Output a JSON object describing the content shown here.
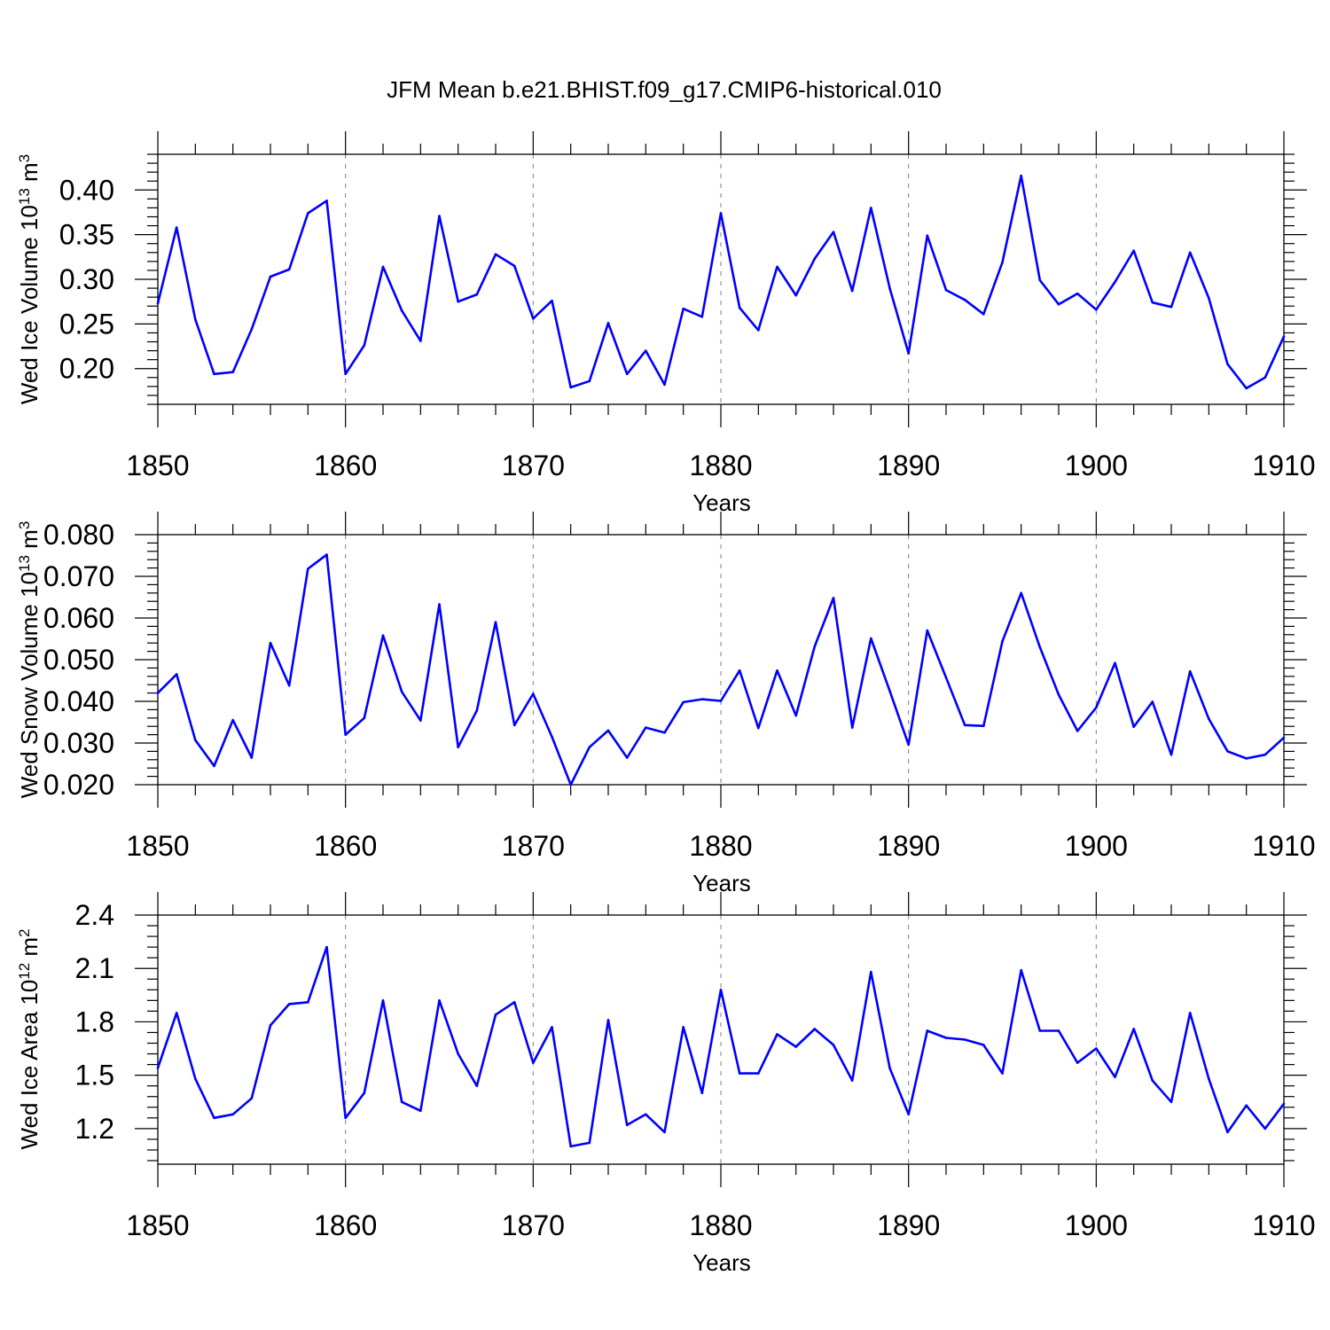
{
  "title": "JFM Mean b.e21.BHIST.f09_g17.CMIP6-historical.010",
  "colors": {
    "line": "#0000ff",
    "grid": "#808080",
    "axis": "#000000"
  },
  "chart_data": [
    {
      "type": "line",
      "title": "JFM Mean b.e21.BHIST.f09_g17.CMIP6-historical.010",
      "xlabel": "Years",
      "ylabel": {
        "main": "Wed Ice Volume 10",
        "sup": "13",
        "unit": " m",
        "unit_sup": "3"
      },
      "xlim": [
        1850,
        1910
      ],
      "ylim": [
        0.16,
        0.44
      ],
      "x_ticks": [
        "1850",
        "1860",
        "1870",
        "1880",
        "1890",
        "1900",
        "1910"
      ],
      "y_ticks": [
        "0.20",
        "0.25",
        "0.30",
        "0.35",
        "0.40"
      ],
      "grid": "dashed vertical at each decade",
      "series": [
        {
          "name": "Wed Ice Volume",
          "x_start": 1850,
          "values": [
            0.273,
            0.358,
            0.255,
            0.194,
            0.196,
            0.244,
            0.303,
            0.311,
            0.374,
            0.388,
            0.194,
            0.226,
            0.314,
            0.265,
            0.231,
            0.371,
            0.275,
            0.283,
            0.328,
            0.315,
            0.256,
            0.276,
            0.179,
            0.186,
            0.251,
            0.194,
            0.22,
            0.182,
            0.267,
            0.258,
            0.374,
            0.268,
            0.243,
            0.314,
            0.282,
            0.323,
            0.353,
            0.287,
            0.38,
            0.29,
            0.217,
            0.349,
            0.288,
            0.277,
            0.261,
            0.319,
            0.416,
            0.299,
            0.272,
            0.284,
            0.266,
            0.297,
            0.332,
            0.274,
            0.269,
            0.33,
            0.279,
            0.205,
            0.178,
            0.19,
            0.236
          ]
        }
      ]
    },
    {
      "type": "line",
      "xlabel": "Years",
      "ylabel": {
        "main": "Wed Snow Volume 10",
        "sup": "13",
        "unit": " m",
        "unit_sup": "3"
      },
      "xlim": [
        1850,
        1910
      ],
      "ylim": [
        0.02,
        0.08
      ],
      "x_ticks": [
        "1850",
        "1860",
        "1870",
        "1880",
        "1890",
        "1900",
        "1910"
      ],
      "y_ticks": [
        "0.020",
        "0.030",
        "0.040",
        "0.050",
        "0.060",
        "0.070",
        "0.080"
      ],
      "grid": "dashed vertical at each decade",
      "series": [
        {
          "name": "Wed Snow Volume",
          "x_start": 1850,
          "values": [
            0.042,
            0.0465,
            0.0307,
            0.0245,
            0.0355,
            0.0265,
            0.054,
            0.0438,
            0.0718,
            0.0752,
            0.032,
            0.036,
            0.0558,
            0.0423,
            0.0354,
            0.0633,
            0.029,
            0.0378,
            0.059,
            0.0343,
            0.0418,
            0.0315,
            0.02,
            0.029,
            0.033,
            0.0265,
            0.0337,
            0.0325,
            0.0398,
            0.0405,
            0.0401,
            0.0474,
            0.0336,
            0.0474,
            0.0366,
            0.0532,
            0.0648,
            0.0337,
            0.0551,
            0.0425,
            0.0296,
            0.057,
            0.0457,
            0.0343,
            0.0341,
            0.0544,
            0.066,
            0.053,
            0.0416,
            0.0329,
            0.0385,
            0.0492,
            0.0339,
            0.0399,
            0.0272,
            0.0472,
            0.0358,
            0.028,
            0.0263,
            0.0272,
            0.0313
          ]
        }
      ]
    },
    {
      "type": "line",
      "xlabel": "Years",
      "ylabel": {
        "main": "Wed Ice Area 10",
        "sup": "12",
        "unit": " m",
        "unit_sup": "2"
      },
      "xlim": [
        1850,
        1910
      ],
      "ylim": [
        1.0,
        2.4
      ],
      "x_ticks": [
        "1850",
        "1860",
        "1870",
        "1880",
        "1890",
        "1900",
        "1910"
      ],
      "y_ticks": [
        "1.2",
        "1.5",
        "1.8",
        "2.1",
        "2.4"
      ],
      "grid": "dashed vertical at each decade",
      "series": [
        {
          "name": "Wed Ice Area",
          "x_start": 1850,
          "values": [
            1.54,
            1.85,
            1.48,
            1.26,
            1.28,
            1.37,
            1.78,
            1.9,
            1.91,
            2.22,
            1.26,
            1.4,
            1.92,
            1.35,
            1.3,
            1.92,
            1.62,
            1.44,
            1.84,
            1.91,
            1.57,
            1.77,
            1.1,
            1.12,
            1.81,
            1.22,
            1.28,
            1.18,
            1.77,
            1.4,
            1.98,
            1.51,
            1.51,
            1.73,
            1.66,
            1.76,
            1.67,
            1.47,
            2.08,
            1.54,
            1.28,
            1.75,
            1.71,
            1.7,
            1.67,
            1.51,
            2.09,
            1.75,
            1.75,
            1.57,
            1.65,
            1.49,
            1.76,
            1.47,
            1.35,
            1.85,
            1.48,
            1.18,
            1.33,
            1.2,
            1.34
          ]
        }
      ]
    }
  ]
}
